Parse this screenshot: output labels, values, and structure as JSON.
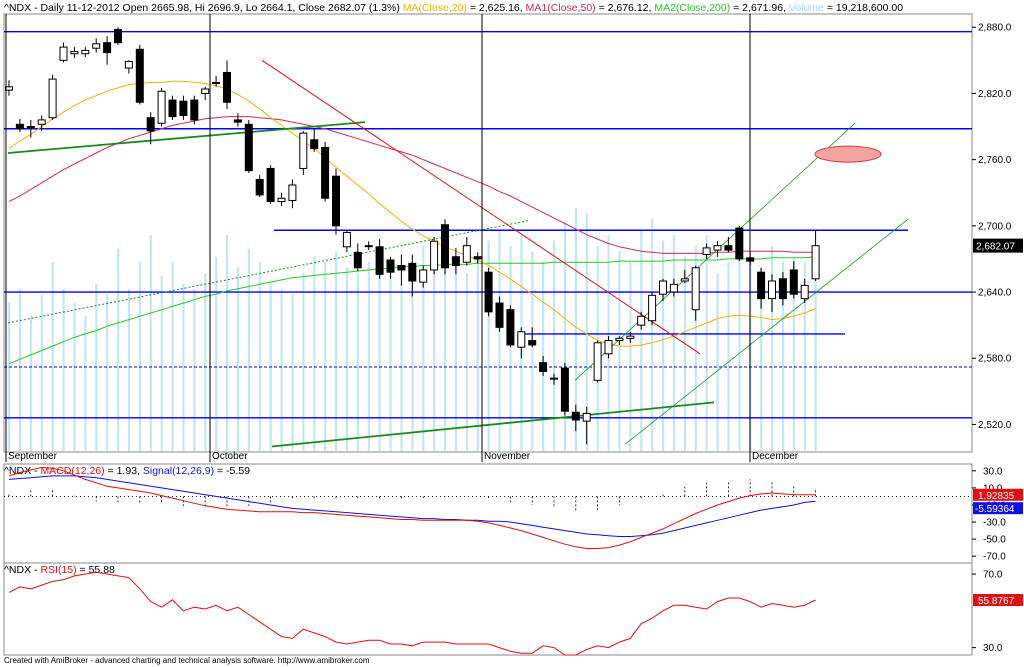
{
  "header": {
    "symbol": "^NDX",
    "summary": " - Daily 11-12-2012 Open 2665.98, Hi 2696.9, Lo 2664.1, Close 2682.07 (1.3%)",
    "ma20_label": "MA(Close,20)",
    "ma20_value": " = 2,625.16, ",
    "ma50_label": "MA1(Close,50)",
    "ma50_value": " = 2,676.12, ",
    "ma200_label": "MA2(Close,200)",
    "ma200_value": " = 2,671.96, ",
    "volume_label": "Volume",
    "volume_value": " = 19,218,600.00"
  },
  "macd_header": {
    "symbol": "^NDX - ",
    "macd_label": "MACD(12,26)",
    "macd_value": " = 1.93, ",
    "signal_label": "Signal(12,26,9)",
    "signal_value": " = -5.59"
  },
  "rsi_header": {
    "symbol": "^NDX - ",
    "rsi_label": "RSI(15)",
    "rsi_value": " = 55.88"
  },
  "footer": "Created with AmiBroker - advanced charting and technical analysis software. http://www.amibroker.com",
  "colors": {
    "up": "#ffffff",
    "down": "#000000",
    "ma20": "#f0b400",
    "ma50": "#d8285a",
    "ma200": "#22cc22",
    "volume": "#c4e6f4",
    "hline": "#0000ff",
    "macd": "#e01010",
    "signal": "#1010e0",
    "rsi": "#e01010"
  },
  "chart_data": [
    {
      "type": "candlestick",
      "title": "^NDX Daily",
      "yticks": [
        "2,880.0",
        "2,820.0",
        "2,760.0",
        "2,700.0",
        "2,640.0",
        "2,580.0",
        "2,520.0"
      ],
      "ylim": [
        2495,
        2892
      ],
      "xlabels": [
        "September",
        "October",
        "November",
        "December"
      ],
      "last_price_label": "2,682.07",
      "horizontal_levels": [
        2876,
        2788,
        2696,
        2640,
        2602,
        2572,
        2526
      ],
      "candles": [
        {
          "o": 2823,
          "h": 2832,
          "l": 2818,
          "c": 2826
        },
        {
          "o": 2792,
          "h": 2797,
          "l": 2785,
          "c": 2788
        },
        {
          "o": 2790,
          "h": 2796,
          "l": 2780,
          "c": 2789
        },
        {
          "o": 2792,
          "h": 2800,
          "l": 2786,
          "c": 2796
        },
        {
          "o": 2798,
          "h": 2837,
          "l": 2796,
          "c": 2833
        },
        {
          "o": 2850,
          "h": 2866,
          "l": 2848,
          "c": 2862
        },
        {
          "o": 2856,
          "h": 2862,
          "l": 2852,
          "c": 2858
        },
        {
          "o": 2856,
          "h": 2862,
          "l": 2853,
          "c": 2859
        },
        {
          "o": 2861,
          "h": 2870,
          "l": 2857,
          "c": 2865
        },
        {
          "o": 2866,
          "h": 2872,
          "l": 2846,
          "c": 2857
        },
        {
          "o": 2878,
          "h": 2880,
          "l": 2864,
          "c": 2866
        },
        {
          "o": 2843,
          "h": 2850,
          "l": 2838,
          "c": 2849
        },
        {
          "o": 2860,
          "h": 2864,
          "l": 2810,
          "c": 2812
        },
        {
          "o": 2798,
          "h": 2803,
          "l": 2774,
          "c": 2786
        },
        {
          "o": 2793,
          "h": 2825,
          "l": 2790,
          "c": 2822
        },
        {
          "o": 2814,
          "h": 2818,
          "l": 2796,
          "c": 2799
        },
        {
          "o": 2813,
          "h": 2818,
          "l": 2796,
          "c": 2800
        },
        {
          "o": 2814,
          "h": 2818,
          "l": 2792,
          "c": 2796
        },
        {
          "o": 2820,
          "h": 2826,
          "l": 2814,
          "c": 2824
        },
        {
          "o": 2830,
          "h": 2836,
          "l": 2826,
          "c": 2829
        },
        {
          "o": 2839,
          "h": 2850,
          "l": 2806,
          "c": 2812
        },
        {
          "o": 2796,
          "h": 2802,
          "l": 2790,
          "c": 2794
        },
        {
          "o": 2792,
          "h": 2796,
          "l": 2748,
          "c": 2750
        },
        {
          "o": 2742,
          "h": 2746,
          "l": 2726,
          "c": 2728
        },
        {
          "o": 2752,
          "h": 2755,
          "l": 2720,
          "c": 2722
        },
        {
          "o": 2722,
          "h": 2730,
          "l": 2718,
          "c": 2725
        },
        {
          "o": 2723,
          "h": 2742,
          "l": 2716,
          "c": 2737
        },
        {
          "o": 2752,
          "h": 2786,
          "l": 2746,
          "c": 2784
        },
        {
          "o": 2778,
          "h": 2788,
          "l": 2767,
          "c": 2770
        },
        {
          "o": 2771,
          "h": 2776,
          "l": 2722,
          "c": 2725
        },
        {
          "o": 2745,
          "h": 2752,
          "l": 2692,
          "c": 2700
        },
        {
          "o": 2681,
          "h": 2696,
          "l": 2676,
          "c": 2694
        },
        {
          "o": 2676,
          "h": 2684,
          "l": 2659,
          "c": 2662
        },
        {
          "o": 2682,
          "h": 2686,
          "l": 2678,
          "c": 2682
        },
        {
          "o": 2681,
          "h": 2688,
          "l": 2652,
          "c": 2656
        },
        {
          "o": 2669,
          "h": 2672,
          "l": 2652,
          "c": 2658
        },
        {
          "o": 2664,
          "h": 2674,
          "l": 2646,
          "c": 2660
        },
        {
          "o": 2666,
          "h": 2674,
          "l": 2636,
          "c": 2650
        },
        {
          "o": 2649,
          "h": 2664,
          "l": 2644,
          "c": 2660
        },
        {
          "o": 2660,
          "h": 2690,
          "l": 2656,
          "c": 2686
        },
        {
          "o": 2701,
          "h": 2706,
          "l": 2656,
          "c": 2662
        },
        {
          "o": 2672,
          "h": 2680,
          "l": 2656,
          "c": 2664
        },
        {
          "o": 2667,
          "h": 2690,
          "l": 2664,
          "c": 2682
        },
        {
          "o": 2672,
          "h": 2676,
          "l": 2666,
          "c": 2670
        },
        {
          "o": 2658,
          "h": 2662,
          "l": 2618,
          "c": 2622
        },
        {
          "o": 2630,
          "h": 2636,
          "l": 2604,
          "c": 2608
        },
        {
          "o": 2624,
          "h": 2628,
          "l": 2590,
          "c": 2592
        },
        {
          "o": 2590,
          "h": 2608,
          "l": 2580,
          "c": 2604
        },
        {
          "o": 2596,
          "h": 2608,
          "l": 2590,
          "c": 2592
        },
        {
          "o": 2576,
          "h": 2582,
          "l": 2564,
          "c": 2568
        },
        {
          "o": 2561,
          "h": 2566,
          "l": 2556,
          "c": 2562
        },
        {
          "o": 2571,
          "h": 2576,
          "l": 2528,
          "c": 2532
        },
        {
          "o": 2531,
          "h": 2538,
          "l": 2514,
          "c": 2524
        },
        {
          "o": 2523,
          "h": 2536,
          "l": 2502,
          "c": 2530
        },
        {
          "o": 2560,
          "h": 2596,
          "l": 2558,
          "c": 2594
        },
        {
          "o": 2584,
          "h": 2600,
          "l": 2580,
          "c": 2596
        },
        {
          "o": 2596,
          "h": 2600,
          "l": 2592,
          "c": 2598
        },
        {
          "o": 2598,
          "h": 2604,
          "l": 2594,
          "c": 2600
        },
        {
          "o": 2610,
          "h": 2622,
          "l": 2606,
          "c": 2618
        },
        {
          "o": 2614,
          "h": 2640,
          "l": 2610,
          "c": 2637
        },
        {
          "o": 2638,
          "h": 2652,
          "l": 2632,
          "c": 2650
        },
        {
          "o": 2640,
          "h": 2652,
          "l": 2636,
          "c": 2647
        },
        {
          "o": 2650,
          "h": 2660,
          "l": 2648,
          "c": 2652
        },
        {
          "o": 2624,
          "h": 2664,
          "l": 2614,
          "c": 2662
        },
        {
          "o": 2674,
          "h": 2684,
          "l": 2670,
          "c": 2680
        },
        {
          "o": 2678,
          "h": 2686,
          "l": 2672,
          "c": 2682
        },
        {
          "o": 2682,
          "h": 2690,
          "l": 2676,
          "c": 2678
        },
        {
          "o": 2698,
          "h": 2700,
          "l": 2668,
          "c": 2670
        },
        {
          "o": 2671,
          "h": 2676,
          "l": 2664,
          "c": 2668
        },
        {
          "o": 2658,
          "h": 2662,
          "l": 2625,
          "c": 2634
        },
        {
          "o": 2634,
          "h": 2656,
          "l": 2622,
          "c": 2650
        },
        {
          "o": 2652,
          "h": 2658,
          "l": 2628,
          "c": 2634
        },
        {
          "o": 2660,
          "h": 2668,
          "l": 2634,
          "c": 2638
        },
        {
          "o": 2634,
          "h": 2652,
          "l": 2630,
          "c": 2646
        },
        {
          "o": 2652,
          "h": 2696,
          "l": 2650,
          "c": 2682
        }
      ],
      "ma20": [
        2770,
        2777,
        2783,
        2790,
        2797,
        2803,
        2809,
        2814,
        2818,
        2822,
        2825,
        2828,
        2829,
        2830,
        2830,
        2831,
        2831,
        2830,
        2829,
        2827,
        2824,
        2819,
        2813,
        2806,
        2798,
        2791,
        2784,
        2777,
        2770,
        2762,
        2753,
        2745,
        2737,
        2729,
        2720,
        2712,
        2704,
        2697,
        2691,
        2686,
        2681,
        2677,
        2673,
        2669,
        2664,
        2658,
        2652,
        2645,
        2638,
        2631,
        2624,
        2616,
        2608,
        2602,
        2596,
        2593,
        2591,
        2591,
        2592,
        2594,
        2597,
        2600,
        2604,
        2608,
        2612,
        2616,
        2618,
        2619,
        2618,
        2617,
        2615,
        2616,
        2618,
        2621,
        2625
      ],
      "ma50": [
        2722,
        2727,
        2733,
        2739,
        2745,
        2751,
        2756,
        2761,
        2766,
        2771,
        2775,
        2779,
        2782,
        2785,
        2788,
        2791,
        2793,
        2795,
        2797,
        2798,
        2799,
        2799,
        2799,
        2798,
        2797,
        2796,
        2794,
        2792,
        2790,
        2788,
        2785,
        2782,
        2779,
        2776,
        2773,
        2770,
        2767,
        2764,
        2760,
        2756,
        2752,
        2748,
        2744,
        2740,
        2736,
        2731,
        2727,
        2722,
        2717,
        2712,
        2707,
        2702,
        2697,
        2692,
        2688,
        2684,
        2681,
        2679,
        2677,
        2676,
        2675,
        2675,
        2675,
        2675,
        2675,
        2676,
        2676,
        2677,
        2677,
        2677,
        2677,
        2677,
        2676,
        2676,
        2676
      ],
      "ma200": [
        2575,
        2579,
        2583,
        2587,
        2591,
        2595,
        2599,
        2602,
        2605,
        2609,
        2612,
        2615,
        2618,
        2621,
        2624,
        2627,
        2630,
        2633,
        2636,
        2638,
        2641,
        2643,
        2645,
        2647,
        2649,
        2651,
        2653,
        2654,
        2655,
        2656,
        2657,
        2658,
        2659,
        2660,
        2661,
        2662,
        2663,
        2663,
        2664,
        2664,
        2665,
        2665,
        2665,
        2666,
        2666,
        2666,
        2666,
        2666,
        2666,
        2666,
        2667,
        2667,
        2667,
        2667,
        2667,
        2667,
        2668,
        2668,
        2668,
        2668,
        2668,
        2669,
        2669,
        2669,
        2669,
        2669,
        2670,
        2670,
        2670,
        2670,
        2671,
        2671,
        2671,
        2671,
        2672
      ],
      "volume": [
        0.55,
        0.6,
        0.5,
        0.58,
        0.7,
        0.6,
        0.55,
        0.5,
        0.62,
        0.58,
        0.75,
        0.6,
        0.7,
        0.8,
        0.65,
        0.7,
        0.62,
        0.6,
        0.66,
        0.72,
        0.8,
        0.68,
        0.75,
        0.7,
        0.62,
        0.6,
        0.58,
        0.66,
        0.72,
        0.7,
        0.74,
        0.68,
        0.66,
        0.7,
        0.72,
        0.68,
        0.62,
        0.7,
        0.76,
        0.72,
        0.78,
        0.7,
        0.66,
        0.72,
        0.78,
        0.82,
        0.76,
        0.8,
        0.74,
        0.7,
        0.78,
        0.85,
        0.9,
        0.88,
        0.76,
        0.8,
        0.74,
        0.7,
        0.82,
        0.86,
        0.78,
        0.8,
        0.72,
        0.76,
        0.8,
        0.66,
        0.7,
        0.74,
        0.72,
        0.68,
        0.76,
        0.7,
        0.72,
        0.7,
        0.66
      ]
    },
    {
      "type": "line",
      "title": "^NDX - MACD(12,26) = 1.93, Signal(12,26,9) = -5.59",
      "yticks": [
        "30.0",
        "10.0",
        "-10.0",
        "-30.0",
        "-50.0",
        "-70.0"
      ],
      "ylim": [
        -78,
        38
      ],
      "macd_label": "1.92835",
      "signal_label": "-5.59364",
      "series": [
        {
          "name": "MACD(12,26)",
          "values": [
            24,
            28,
            31,
            34,
            33,
            30,
            25,
            20,
            16,
            12,
            10,
            8,
            6,
            4,
            1,
            -2,
            -5,
            -8,
            -11,
            -13,
            -15,
            -16,
            -17,
            -18,
            -18,
            -18,
            -18,
            -19,
            -19,
            -20,
            -21,
            -22,
            -23,
            -24,
            -25,
            -26,
            -27,
            -27,
            -28,
            -28,
            -28,
            -28,
            -28,
            -29,
            -31,
            -34,
            -37,
            -40,
            -44,
            -48,
            -52,
            -56,
            -59,
            -61,
            -61,
            -60,
            -57,
            -53,
            -48,
            -43,
            -38,
            -32,
            -26,
            -20,
            -15,
            -10,
            -6,
            -2,
            1,
            3,
            4,
            3,
            2,
            2,
            1.93
          ]
        },
        {
          "name": "Signal(12,26,9)",
          "values": [
            20,
            21,
            22,
            23,
            24,
            24,
            24,
            23,
            22,
            20,
            18,
            16,
            14,
            12,
            10,
            8,
            6,
            4,
            2,
            0,
            -2,
            -4,
            -6,
            -8,
            -10,
            -12,
            -14,
            -15,
            -16,
            -17,
            -18,
            -19,
            -20,
            -21,
            -22,
            -23,
            -24,
            -25,
            -26,
            -26,
            -27,
            -27,
            -28,
            -28,
            -29,
            -29,
            -30,
            -32,
            -34,
            -36,
            -38,
            -40,
            -42,
            -44,
            -45,
            -46,
            -47,
            -47,
            -46,
            -45,
            -43,
            -40,
            -37,
            -34,
            -31,
            -28,
            -25,
            -22,
            -19,
            -16,
            -14,
            -12,
            -10,
            -7,
            -5.59
          ]
        },
        {
          "name": "MACD histogram",
          "values": [
            4,
            7,
            9,
            11,
            9,
            6,
            1,
            -3,
            -6,
            -8,
            -8,
            -8,
            -8,
            -8,
            -9,
            -10,
            -11,
            -12,
            -13,
            -13,
            -13,
            -12,
            -11,
            -10,
            -8,
            -6,
            -4,
            -4,
            -3,
            -3,
            -3,
            -3,
            -3,
            -3,
            -3,
            -3,
            -3,
            -2,
            -2,
            -2,
            -1,
            -1,
            0,
            -1,
            -2,
            -5,
            -7,
            -8,
            -10,
            -12,
            -14,
            -16,
            -17,
            -17,
            -16,
            -14,
            -10,
            -6,
            -2,
            2,
            5,
            8,
            11,
            14,
            16,
            18,
            19,
            20,
            20,
            19,
            18,
            15,
            12,
            9,
            7.5
          ]
        }
      ]
    },
    {
      "type": "line",
      "title": "^NDX - RSI(15) = 55.88",
      "yticks": [
        "70.0",
        "30.0"
      ],
      "ylim": [
        26,
        76
      ],
      "last_label": "55.8767",
      "series": [
        {
          "name": "RSI(15)",
          "values": [
            60,
            63,
            62,
            64,
            66,
            67,
            69,
            70,
            71,
            70,
            69,
            68,
            62,
            55,
            52,
            56,
            50,
            52,
            51,
            53,
            50,
            52,
            48,
            44,
            40,
            36,
            35,
            40,
            38,
            36,
            33,
            32,
            33,
            34,
            34,
            32,
            32,
            31,
            33,
            33,
            33,
            32,
            32,
            32,
            32,
            30,
            28,
            27,
            27,
            31,
            30,
            26,
            26,
            29,
            31,
            30,
            33,
            35,
            43,
            46,
            50,
            53,
            53,
            52,
            51,
            55,
            57,
            57,
            55,
            52,
            54,
            53,
            52,
            53,
            55.88
          ]
        }
      ]
    }
  ]
}
